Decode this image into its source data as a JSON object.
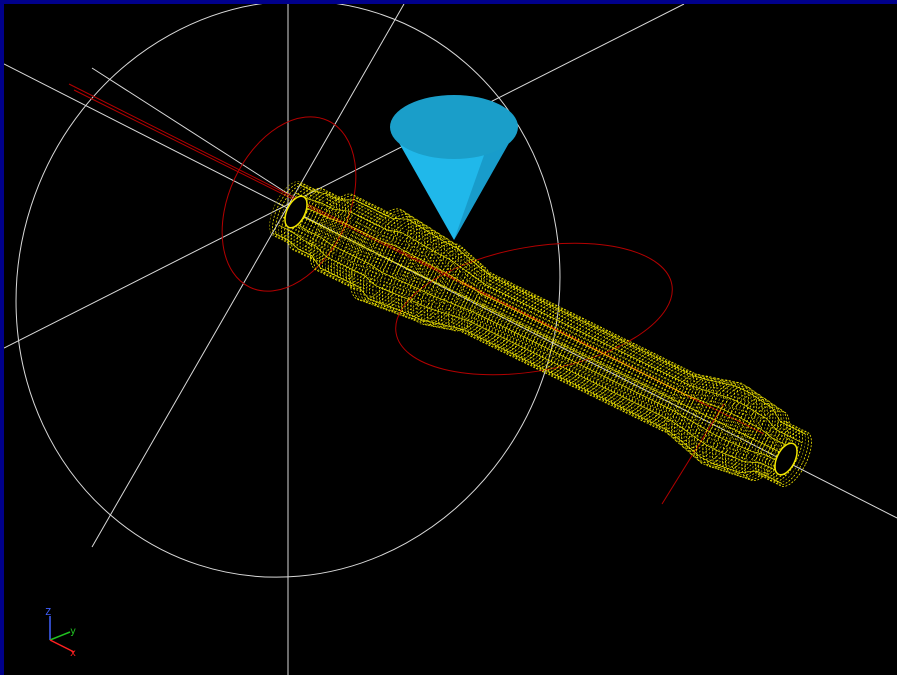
{
  "viewport": {
    "background": "#000000",
    "frame_color": "#00008b"
  },
  "colors": {
    "guide": "#d9d9d9",
    "path": "#b30000",
    "mesh": "#f2e600",
    "mesh_dark": "#8a8400",
    "cone_top": "#1a9ec9",
    "cone_body": "#20b8ea"
  },
  "axis_triad": {
    "x_label": "x",
    "y_label": "y",
    "z_label": "Z",
    "x_color": "#ff2020",
    "y_color": "#20c020",
    "z_color": "#4060ff"
  },
  "icons": {
    "tool": "cone-tool-icon",
    "triad": "axis-triad-icon"
  }
}
